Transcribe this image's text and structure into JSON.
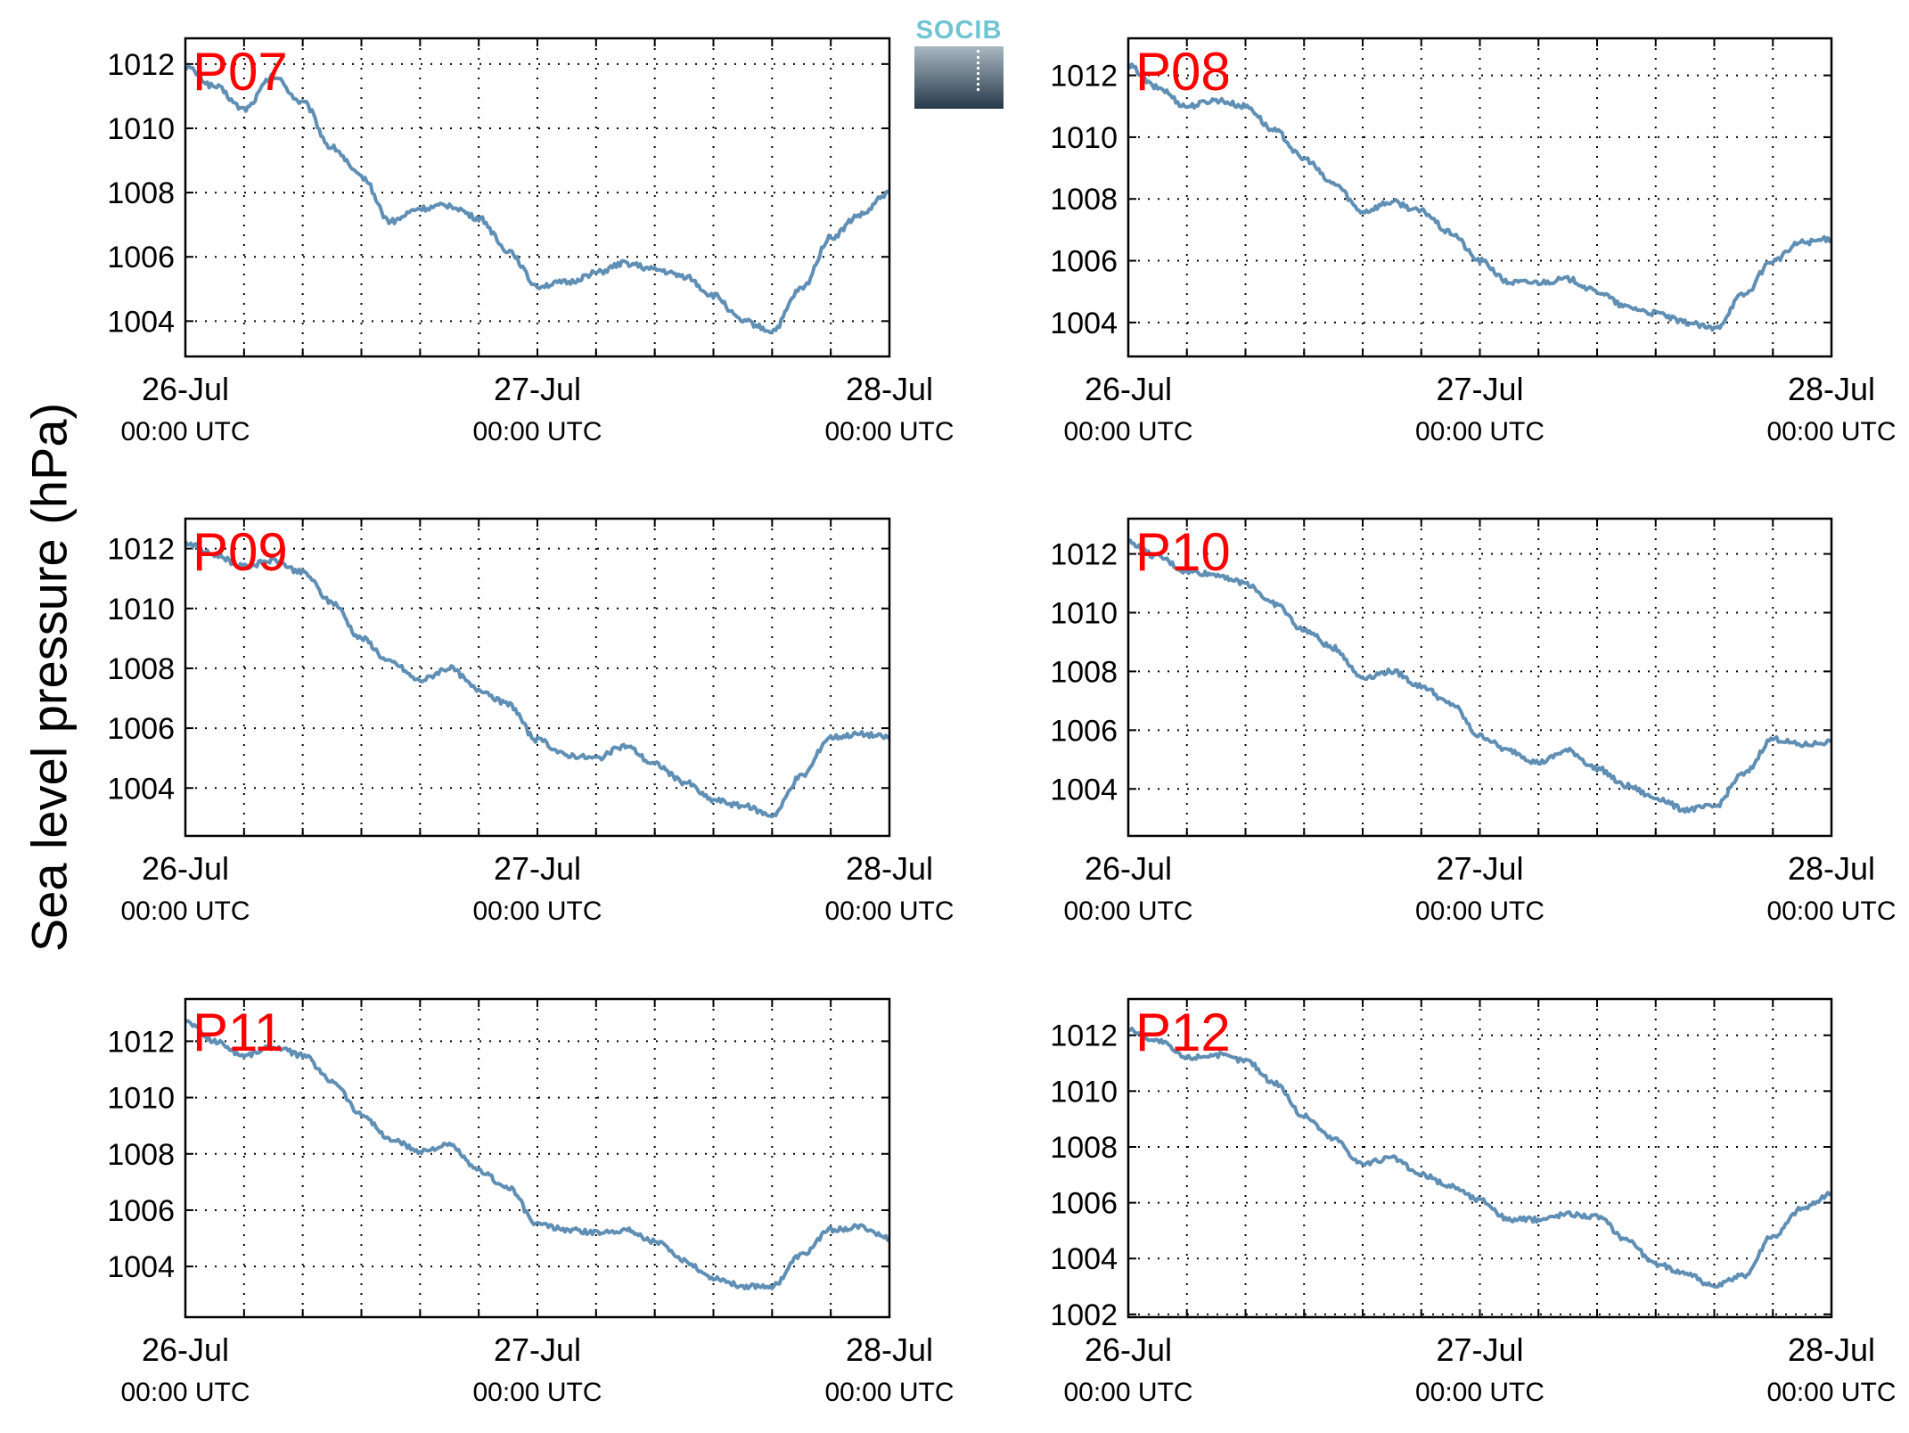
{
  "ylabel": "Sea level pressure (hPa)",
  "logo_text": "SOCIB",
  "colors": {
    "line": "#5f8fb4",
    "station_label": "#ff0000",
    "grid": "#000000"
  },
  "chart_data": [
    {
      "type": "line",
      "station": "P07",
      "x_ticks": [
        {
          "day": "26-Jul",
          "time": "00:00 UTC"
        },
        {
          "day": "27-Jul",
          "time": "00:00 UTC"
        },
        {
          "day": "28-Jul",
          "time": "00:00 UTC"
        }
      ],
      "xlim": [
        "2024-07-26T00:00",
        "2024-07-28T00:00"
      ],
      "ylim": [
        1002.9,
        1012.8
      ],
      "yticks": [
        1004,
        1006,
        1008,
        1010,
        1012
      ],
      "grid": true,
      "series": [
        {
          "x_hours": [
            0,
            2,
            4,
            6,
            8,
            10,
            12,
            14,
            16,
            18,
            20,
            22,
            24,
            26,
            28,
            30,
            32,
            34,
            36,
            38,
            40,
            42,
            44,
            46,
            48
          ],
          "values": [
            1011.9,
            1011.3,
            1010.6,
            1011.6,
            1010.8,
            1009.4,
            1008.5,
            1007.1,
            1007.5,
            1007.6,
            1007.2,
            1006.2,
            1005.1,
            1005.2,
            1005.5,
            1005.8,
            1005.6,
            1005.4,
            1004.8,
            1004.0,
            1003.7,
            1005.0,
            1006.6,
            1007.3,
            1008.0
          ]
        }
      ]
    },
    {
      "type": "line",
      "station": "P08",
      "x_ticks": [
        {
          "day": "26-Jul",
          "time": "00:00 UTC"
        },
        {
          "day": "27-Jul",
          "time": "00:00 UTC"
        },
        {
          "day": "28-Jul",
          "time": "00:00 UTC"
        }
      ],
      "xlim": [
        "2024-07-26T00:00",
        "2024-07-28T00:00"
      ],
      "ylim": [
        1002.9,
        1013.2
      ],
      "yticks": [
        1004,
        1006,
        1008,
        1010,
        1012
      ],
      "grid": true,
      "series": [
        {
          "x_hours": [
            0,
            2,
            4,
            6,
            8,
            10,
            12,
            14,
            16,
            18,
            20,
            22,
            24,
            26,
            28,
            30,
            32,
            34,
            36,
            38,
            40,
            42,
            44,
            46,
            48
          ],
          "values": [
            1012.3,
            1011.6,
            1011.0,
            1011.2,
            1011.0,
            1010.2,
            1009.3,
            1008.5,
            1007.6,
            1007.9,
            1007.6,
            1006.9,
            1006.0,
            1005.3,
            1005.3,
            1005.4,
            1005.0,
            1004.5,
            1004.3,
            1004.0,
            1003.8,
            1004.9,
            1006.0,
            1006.6,
            1006.7
          ]
        }
      ]
    },
    {
      "type": "line",
      "station": "P09",
      "x_ticks": [
        {
          "day": "26-Jul",
          "time": "00:00 UTC"
        },
        {
          "day": "27-Jul",
          "time": "00:00 UTC"
        },
        {
          "day": "28-Jul",
          "time": "00:00 UTC"
        }
      ],
      "xlim": [
        "2024-07-26T00:00",
        "2024-07-28T00:00"
      ],
      "ylim": [
        1002.4,
        1013.0
      ],
      "yticks": [
        1004,
        1006,
        1008,
        1010,
        1012
      ],
      "grid": true,
      "series": [
        {
          "x_hours": [
            0,
            2,
            4,
            6,
            8,
            10,
            12,
            14,
            16,
            18,
            20,
            22,
            24,
            26,
            28,
            30,
            32,
            34,
            36,
            38,
            40,
            42,
            44,
            46,
            48
          ],
          "values": [
            1012.2,
            1011.8,
            1011.4,
            1011.6,
            1011.2,
            1010.2,
            1009.0,
            1008.2,
            1007.6,
            1008.0,
            1007.3,
            1006.8,
            1005.6,
            1005.1,
            1005.0,
            1005.4,
            1004.8,
            1004.2,
            1003.6,
            1003.4,
            1003.1,
            1004.4,
            1005.7,
            1005.8,
            1005.7
          ]
        }
      ]
    },
    {
      "type": "line",
      "station": "P10",
      "x_ticks": [
        {
          "day": "26-Jul",
          "time": "00:00 UTC"
        },
        {
          "day": "27-Jul",
          "time": "00:00 UTC"
        },
        {
          "day": "28-Jul",
          "time": "00:00 UTC"
        }
      ],
      "xlim": [
        "2024-07-26T00:00",
        "2024-07-28T00:00"
      ],
      "ylim": [
        1002.4,
        1013.2
      ],
      "yticks": [
        1004,
        1006,
        1008,
        1010,
        1012
      ],
      "grid": true,
      "series": [
        {
          "x_hours": [
            0,
            2,
            4,
            6,
            8,
            10,
            12,
            14,
            16,
            18,
            20,
            22,
            24,
            26,
            28,
            30,
            32,
            34,
            36,
            38,
            40,
            42,
            44,
            46,
            48
          ],
          "values": [
            1012.4,
            1011.9,
            1011.4,
            1011.3,
            1011.0,
            1010.3,
            1009.4,
            1008.8,
            1007.8,
            1008.0,
            1007.5,
            1006.9,
            1005.8,
            1005.3,
            1004.9,
            1005.3,
            1004.7,
            1004.1,
            1003.7,
            1003.3,
            1003.4,
            1004.5,
            1005.7,
            1005.5,
            1005.6
          ]
        }
      ]
    },
    {
      "type": "line",
      "station": "P11",
      "x_ticks": [
        {
          "day": "26-Jul",
          "time": "00:00 UTC"
        },
        {
          "day": "27-Jul",
          "time": "00:00 UTC"
        },
        {
          "day": "28-Jul",
          "time": "00:00 UTC"
        }
      ],
      "xlim": [
        "2024-07-26T00:00",
        "2024-07-28T00:00"
      ],
      "ylim": [
        1002.2,
        1013.5
      ],
      "yticks": [
        1004,
        1006,
        1008,
        1010,
        1012
      ],
      "grid": true,
      "series": [
        {
          "x_hours": [
            0,
            2,
            4,
            6,
            8,
            10,
            12,
            14,
            16,
            18,
            20,
            22,
            24,
            26,
            28,
            30,
            32,
            34,
            36,
            38,
            40,
            42,
            44,
            46,
            48
          ],
          "values": [
            1012.7,
            1012.0,
            1011.5,
            1011.8,
            1011.5,
            1010.6,
            1009.4,
            1008.5,
            1008.1,
            1008.3,
            1007.4,
            1006.8,
            1005.5,
            1005.3,
            1005.2,
            1005.3,
            1004.9,
            1004.2,
            1003.6,
            1003.3,
            1003.3,
            1004.4,
            1005.3,
            1005.4,
            1005.0
          ]
        }
      ]
    },
    {
      "type": "line",
      "station": "P12",
      "x_ticks": [
        {
          "day": "26-Jul",
          "time": "00:00 UTC"
        },
        {
          "day": "27-Jul",
          "time": "00:00 UTC"
        },
        {
          "day": "28-Jul",
          "time": "00:00 UTC"
        }
      ],
      "xlim": [
        "2024-07-26T00:00",
        "2024-07-28T00:00"
      ],
      "ylim": [
        1001.9,
        1013.3
      ],
      "yticks": [
        1002,
        1004,
        1006,
        1008,
        1010,
        1012
      ],
      "grid": true,
      "series": [
        {
          "x_hours": [
            0,
            2,
            4,
            6,
            8,
            10,
            12,
            14,
            16,
            18,
            20,
            22,
            24,
            26,
            28,
            30,
            32,
            34,
            36,
            38,
            40,
            42,
            44,
            46,
            48
          ],
          "values": [
            1012.2,
            1011.8,
            1011.2,
            1011.3,
            1011.1,
            1010.3,
            1009.1,
            1008.3,
            1007.4,
            1007.6,
            1007.0,
            1006.6,
            1006.1,
            1005.4,
            1005.4,
            1005.6,
            1005.5,
            1004.7,
            1003.8,
            1003.5,
            1003.0,
            1003.4,
            1004.8,
            1005.8,
            1006.3
          ]
        }
      ]
    }
  ]
}
